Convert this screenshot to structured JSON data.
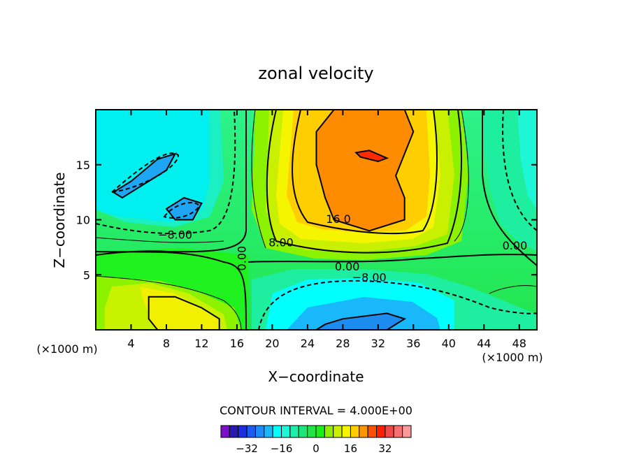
{
  "chart_data": {
    "type": "contour",
    "title": "zonal velocity",
    "xlabel": "X−coordinate",
    "ylabel": "Z−coordinate",
    "x_unit_left": "(×1000 m)",
    "x_unit_right": "(×1000 m)",
    "xlim": [
      0,
      50
    ],
    "ylim": [
      0,
      20
    ],
    "x_ticks": [
      4,
      8,
      12,
      16,
      20,
      24,
      28,
      32,
      36,
      40,
      44,
      48
    ],
    "y_ticks": [
      5,
      10,
      15
    ],
    "contour_interval_text": "CONTOUR INTERVAL = 4.000E+00",
    "contour_labels": [
      {
        "text": "16.0",
        "x": 27.5,
        "y": 9.7
      },
      {
        "text": "8.00",
        "x": 21.0,
        "y": 7.6
      },
      {
        "text": "−8.00",
        "x": 9.0,
        "y": 8.3
      },
      {
        "text": "0.00",
        "x": 17.0,
        "y": 6.5,
        "rotate": -90
      },
      {
        "text": "0.00",
        "x": 28.5,
        "y": 5.4
      },
      {
        "text": "−8.00",
        "x": 31.0,
        "y": 4.4
      },
      {
        "text": "0.00",
        "x": 47.5,
        "y": 7.3
      }
    ],
    "colorbar": {
      "levels": [
        -36,
        -32,
        -28,
        -24,
        -20,
        -16,
        -12,
        -8,
        -4,
        0,
        4,
        8,
        12,
        16,
        20,
        24,
        28,
        32,
        36
      ],
      "tick_labels": [
        "−32",
        "−16",
        "0",
        "16",
        "32"
      ],
      "colors": [
        "#7b10c8",
        "#2a18b0",
        "#1c2ee0",
        "#1c5cf0",
        "#1e8cf5",
        "#19b8fa",
        "#00ffff",
        "#1ef7d7",
        "#1eeeaa",
        "#19e878",
        "#1fe646",
        "#19ef19",
        "#8ef000",
        "#c8f000",
        "#f5f500",
        "#ffce00",
        "#ff9600",
        "#ff5000",
        "#ff1e00",
        "#ee4a4a",
        "#f47272",
        "#fa9a9a"
      ]
    },
    "regions": [
      {
        "level": 20,
        "color": "#ff8c00",
        "outline": [
          [
            27,
            20
          ],
          [
            35,
            20
          ],
          [
            36,
            18
          ],
          [
            35,
            16
          ],
          [
            34,
            14
          ],
          [
            35,
            12
          ],
          [
            35,
            10
          ],
          [
            31,
            9
          ],
          [
            27,
            10
          ],
          [
            26,
            12
          ],
          [
            25,
            15
          ],
          [
            25,
            18
          ]
        ]
      },
      {
        "level": 28,
        "color": "#ff2a00",
        "outline": [
          [
            29.5,
            16.1
          ],
          [
            31,
            16.3
          ],
          [
            33,
            15.6
          ],
          [
            32,
            15.3
          ],
          [
            30,
            15.7
          ]
        ]
      },
      {
        "level": -12,
        "color": "#1ea6f5",
        "outline": [
          [
            2,
            12.5
          ],
          [
            4,
            13.5
          ],
          [
            7,
            15.5
          ],
          [
            9,
            16
          ],
          [
            8,
            14.5
          ],
          [
            6,
            13.5
          ],
          [
            3,
            12
          ]
        ]
      },
      {
        "level": -12,
        "color": "#1ea6f5",
        "outline": [
          [
            8,
            11
          ],
          [
            10,
            12
          ],
          [
            12,
            11.5
          ],
          [
            11,
            10
          ],
          [
            9,
            10
          ]
        ]
      },
      {
        "level": -16,
        "color": "#1c8cf0",
        "outline": [
          [
            25,
            0
          ],
          [
            33,
            0
          ],
          [
            35,
            1
          ],
          [
            33,
            1.5
          ],
          [
            28,
            1
          ],
          [
            26,
            0.5
          ]
        ]
      },
      {
        "level": 12,
        "color": "#f0f000",
        "outline": [
          [
            6,
            3
          ],
          [
            9,
            3
          ],
          [
            12,
            2
          ],
          [
            14,
            1
          ],
          [
            14,
            0
          ],
          [
            7,
            0
          ],
          [
            6,
            1
          ]
        ]
      }
    ]
  }
}
